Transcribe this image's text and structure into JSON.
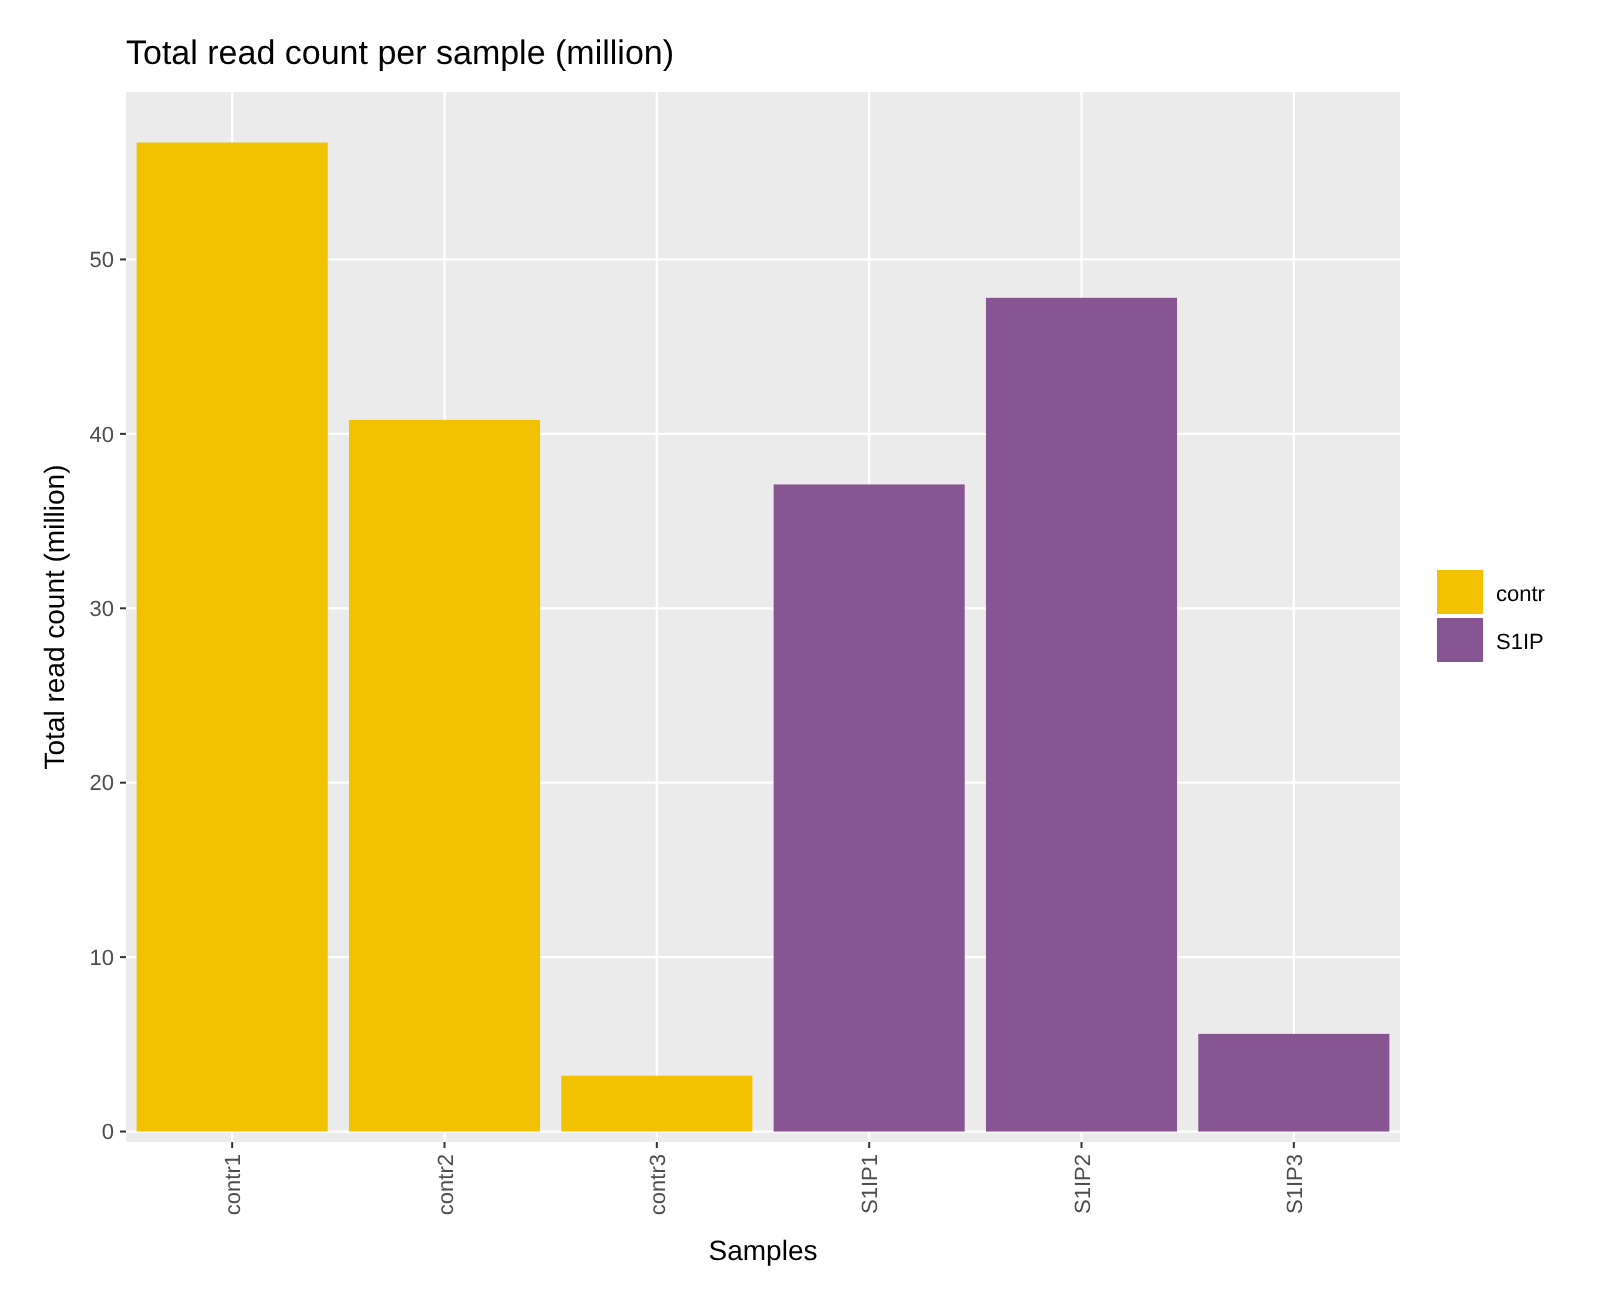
{
  "chart_data": {
    "type": "bar",
    "title": "Total read count per sample (million)",
    "xlabel": "Samples",
    "ylabel": "Total read count (million)",
    "categories": [
      "contr1",
      "contr2",
      "contr3",
      "S1IP1",
      "S1IP2",
      "S1IP3"
    ],
    "series": [
      {
        "name": "contr",
        "color": "#f2c200",
        "values": [
          56.7,
          40.8,
          3.2,
          null,
          null,
          null
        ]
      },
      {
        "name": "S1IP",
        "color": "#875692",
        "values": [
          null,
          null,
          null,
          37.1,
          47.8,
          5.6
        ]
      }
    ],
    "stacked": true,
    "ylim": [
      -0.6,
      59.6
    ],
    "yticks": [
      0,
      10,
      20,
      30,
      40,
      50
    ],
    "grid": true,
    "legend": "right"
  }
}
